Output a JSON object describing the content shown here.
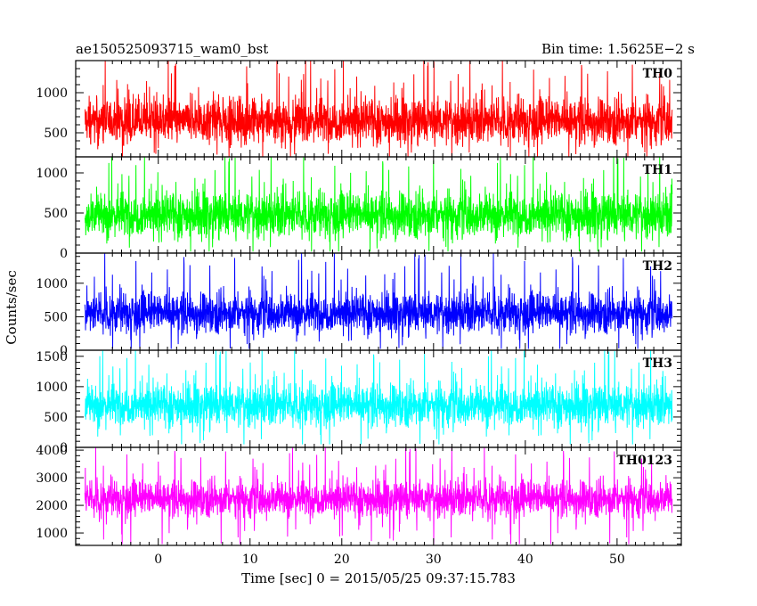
{
  "header": {
    "title": "ae150525093715_wam0_bst",
    "bin_time": "Bin time: 1.5625E−2 s"
  },
  "axes": {
    "ylabel": "Counts/sec",
    "xlabel": "Time [sec] 0 = 2015/05/25 09:37:15.783"
  },
  "chart_data": {
    "type": "line",
    "xlim": [
      -9,
      57
    ],
    "x_data_range": [
      -8,
      56
    ],
    "xticks": [
      0,
      10,
      20,
      30,
      40,
      50
    ],
    "xtick_labels": [
      "0",
      "10",
      "20",
      "30",
      "40",
      "50"
    ],
    "panels": [
      {
        "name": "TH0",
        "color": "#ff0000",
        "ylim": [
          200,
          1400
        ],
        "yticks": [
          500,
          1000
        ],
        "ytick_labels": [
          "500",
          "1000"
        ],
        "signal": {
          "mean": 650,
          "spread": 230,
          "min": 200,
          "max": 1400
        }
      },
      {
        "name": "TH1",
        "color": "#00ff00",
        "ylim": [
          0,
          1200
        ],
        "yticks": [
          0,
          500,
          1000
        ],
        "ytick_labels": [
          "0",
          "500",
          "1000"
        ],
        "signal": {
          "mean": 480,
          "spread": 230,
          "min": 20,
          "max": 1200
        }
      },
      {
        "name": "TH2",
        "color": "#0000ff",
        "ylim": [
          0,
          1450
        ],
        "yticks": [
          0,
          500,
          1000
        ],
        "ytick_labels": [
          "0",
          "500",
          "1000"
        ],
        "signal": {
          "mean": 560,
          "spread": 240,
          "min": 20,
          "max": 1450
        }
      },
      {
        "name": "TH3",
        "color": "#00ffff",
        "ylim": [
          0,
          1600
        ],
        "yticks": [
          0,
          500,
          1000,
          1500
        ],
        "ytick_labels": [
          "0",
          "500",
          "1000",
          "1500"
        ],
        "signal": {
          "mean": 700,
          "spread": 280,
          "min": 50,
          "max": 1600
        }
      },
      {
        "name": "TH0123",
        "color": "#ff00ff",
        "ylim": [
          550,
          4100
        ],
        "yticks": [
          1000,
          2000,
          3000,
          4000
        ],
        "ytick_labels": [
          "1000",
          "2000",
          "3000",
          "4000"
        ],
        "signal": {
          "mean": 2250,
          "spread": 520,
          "min": 600,
          "max": 4100
        }
      }
    ]
  }
}
